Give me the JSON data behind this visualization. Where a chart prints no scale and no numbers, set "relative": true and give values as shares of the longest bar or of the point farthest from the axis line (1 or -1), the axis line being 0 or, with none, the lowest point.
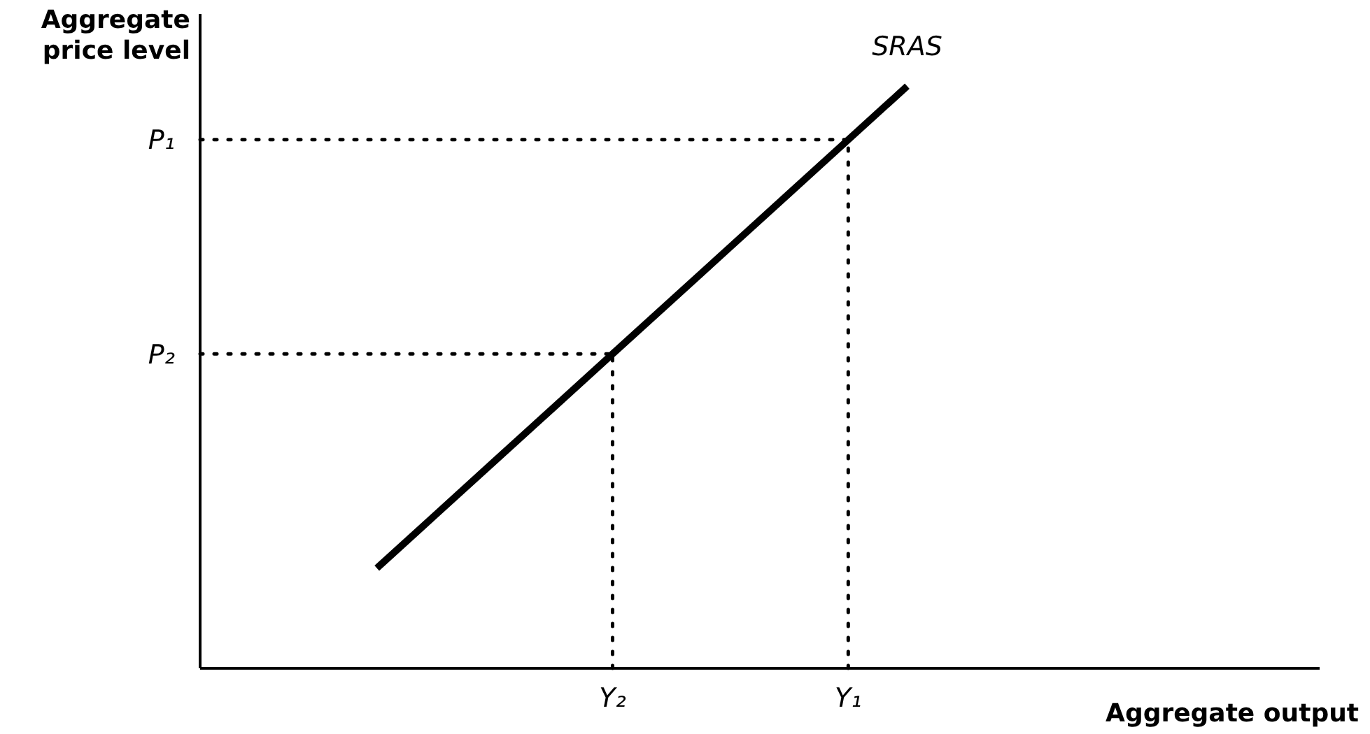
{
  "chart_data": {
    "type": "line",
    "xlabel": "Aggregate output",
    "ylabel": "Aggregate price level",
    "relative": true,
    "categories": [
      null,
      null,
      null,
      null,
      null,
      null,
      null,
      "Y₂",
      null,
      null,
      null,
      "Y₁",
      null,
      null,
      null,
      null,
      null,
      null,
      null,
      null
    ],
    "series": [
      {
        "color": "#000000",
        "values": [
          null,
          null,
          null,
          0.172,
          0.264,
          0.356,
          0.448,
          0.54,
          0.632,
          0.724,
          0.816,
          0.908,
          1,
          null,
          null,
          null,
          null,
          null,
          null,
          null
        ],
        "marker": "none"
      }
    ],
    "ref_lines": [
      {
        "axis": "y",
        "value": 0.908,
        "label": "P₁",
        "line_style": "dotted",
        "color": "#000000"
      },
      {
        "axis": "y",
        "value": 0.54,
        "label": "P₂",
        "line_style": "dotted",
        "color": "#000000"
      },
      {
        "axis": "x",
        "value": "Y₁",
        "line_style": "dotted",
        "color": "#000000"
      },
      {
        "axis": "x",
        "value": "Y₂",
        "line_style": "dotted",
        "color": "#000000"
      }
    ],
    "annotations": [
      {
        "text": "SRAS",
        "y": 1
      }
    ],
    "grid": false,
    "legend": false
  }
}
